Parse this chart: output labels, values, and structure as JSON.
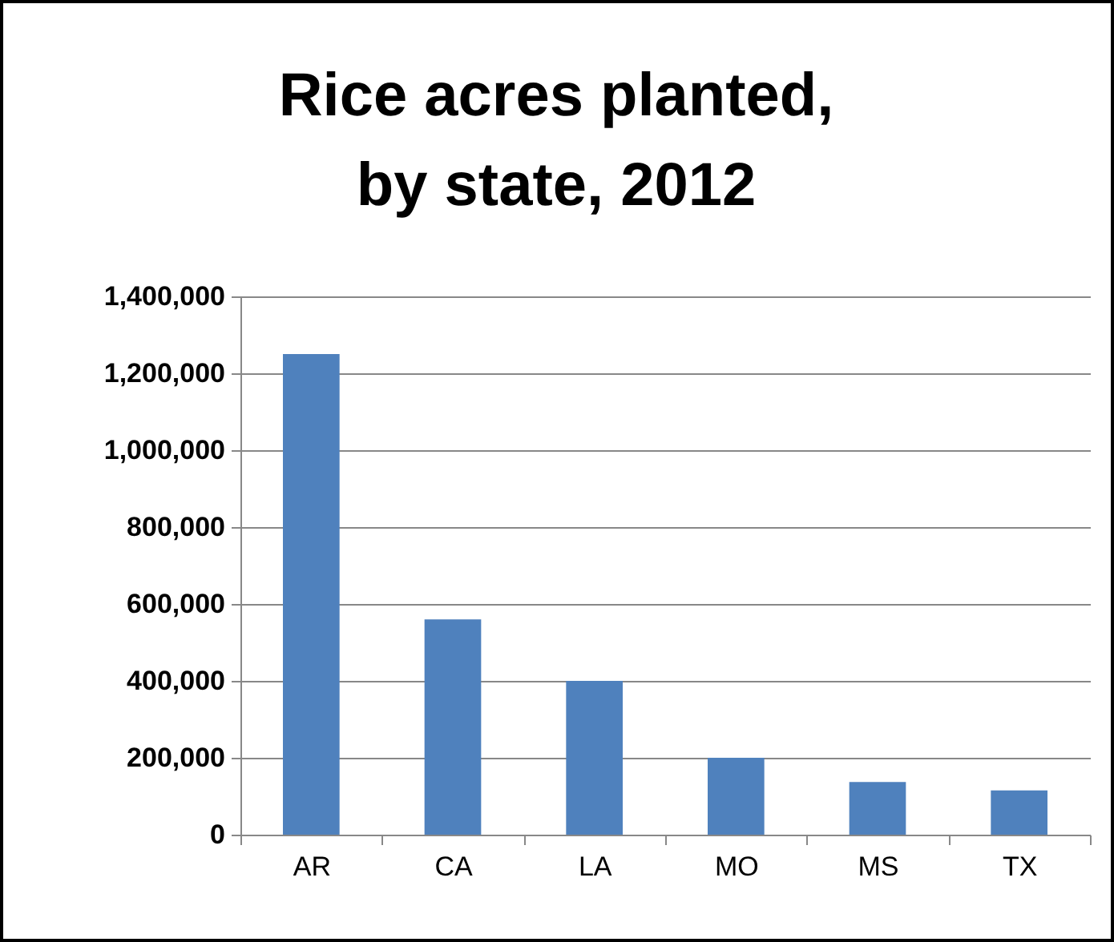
{
  "chart_data": {
    "type": "bar",
    "title": "Rice acres planted, by state, 2012",
    "categories": [
      "AR",
      "CA",
      "LA",
      "MO",
      "MS",
      "TX"
    ],
    "values": [
      1250000,
      560000,
      400000,
      200000,
      137000,
      115000
    ],
    "color": "#4f81bd",
    "ylim": [
      0,
      1400000
    ],
    "yticks": [
      {
        "value": 0,
        "label": "0"
      },
      {
        "value": 200000,
        "label": "200,000"
      },
      {
        "value": 400000,
        "label": "400,000"
      },
      {
        "value": 600000,
        "label": "600,000"
      },
      {
        "value": 800000,
        "label": "800,000"
      },
      {
        "value": 1000000,
        "label": "1,000,000"
      },
      {
        "value": 1200000,
        "label": "1,200,000"
      },
      {
        "value": 1400000,
        "label": "1,400,000"
      }
    ],
    "grid": "y"
  }
}
